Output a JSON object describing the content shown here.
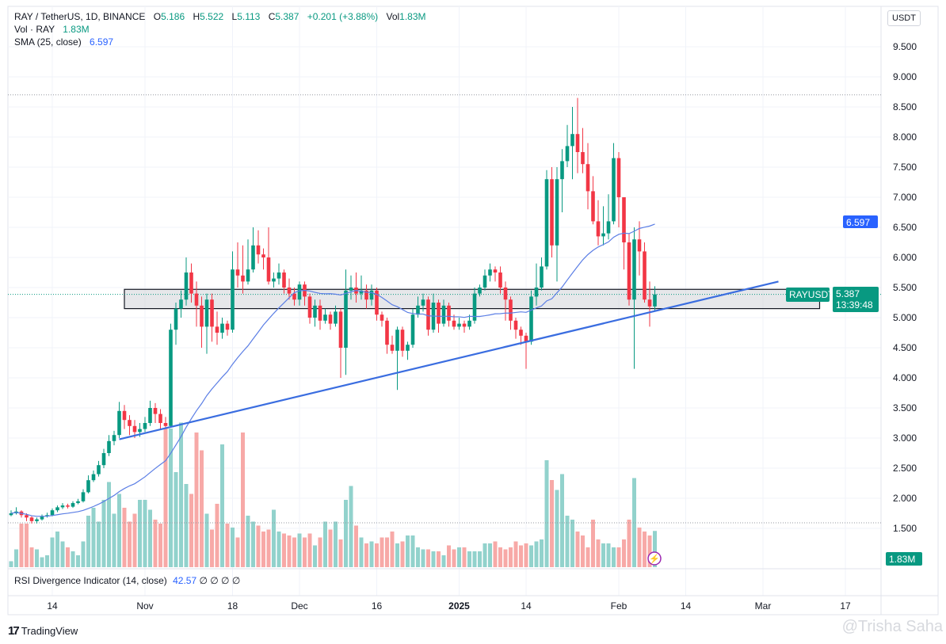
{
  "header": {
    "symbol": "RAY / TetherUS, 1D, BINANCE",
    "o_label": "O",
    "o": "5.186",
    "h_label": "H",
    "h": "5.522",
    "l_label": "L",
    "l": "5.113",
    "c_label": "C",
    "c": "5.387",
    "change": "+0.201 (+3.88%)",
    "vol_label": "Vol",
    "vol": "1.83M",
    "vol_indicator": "Vol · RAY",
    "vol_indicator_value": "1.83M",
    "sma_label": "SMA (25, close)",
    "sma_value": "6.597"
  },
  "rsi": {
    "label": "RSI Divergence Indicator (14, close)",
    "value": "42.57",
    "extras": "∅ ∅ ∅ ∅"
  },
  "currency": "USDT",
  "badges": {
    "sma": "6.597",
    "symbol": "RAYUSDT",
    "price": "5.387",
    "countdown": "13:39:48",
    "volume": "1.83M"
  },
  "branding": {
    "logo": "TradingView",
    "watermark": "@Trisha Saha"
  },
  "colors": {
    "up": "#089981",
    "down": "#f23645",
    "vol_up": "#92d2cc",
    "vol_down": "#f7a9a7",
    "sma": "#5b7ee5",
    "trendline": "#3a6de0",
    "badge_blue": "#2962ff"
  },
  "chart_data": {
    "type": "candlestick",
    "interval": "1D",
    "date_range": [
      "2024-10-06",
      "2025-02-08"
    ],
    "y_ticks": [
      "1.500",
      "2.000",
      "2.500",
      "3.000",
      "3.500",
      "4.000",
      "4.500",
      "5.000",
      "5.500",
      "6.000",
      "6.500",
      "7.000",
      "7.500",
      "8.000",
      "8.500",
      "9.000",
      "9.500"
    ],
    "ylim": [
      1.0,
      9.8
    ],
    "x_ticks": [
      {
        "label": "14",
        "date": "2024-10-14"
      },
      {
        "label": "Nov",
        "date": "2024-11-01"
      },
      {
        "label": "18",
        "date": "2024-11-18"
      },
      {
        "label": "Dec",
        "date": "2024-12-01"
      },
      {
        "label": "16",
        "date": "2024-12-16"
      },
      {
        "label": "2025",
        "date": "2025-01-01"
      },
      {
        "label": "14",
        "date": "2025-01-14"
      },
      {
        "label": "Feb",
        "date": "2025-02-01"
      },
      {
        "label": "14",
        "date": "2025-02-14"
      },
      {
        "label": "Mar",
        "date": "2025-03-01"
      },
      {
        "label": "17",
        "date": "2025-03-17"
      }
    ],
    "close": [
      1.75,
      1.78,
      1.72,
      1.68,
      1.62,
      1.65,
      1.7,
      1.72,
      1.8,
      1.85,
      1.88,
      1.86,
      1.92,
      1.95,
      2.1,
      2.3,
      2.4,
      2.55,
      2.75,
      2.95,
      3.05,
      3.45,
      3.3,
      3.2,
      3.1,
      3.15,
      3.25,
      3.5,
      3.4,
      3.25,
      3.2,
      4.8,
      5.15,
      5.3,
      5.75,
      5.4,
      5.2,
      4.85,
      5.3,
      4.85,
      4.75,
      4.9,
      4.8,
      5.8,
      5.7,
      5.6,
      5.8,
      6.2,
      6.05,
      6.0,
      5.6,
      5.65,
      5.75,
      5.5,
      5.4,
      5.3,
      5.55,
      5.35,
      5.0,
      5.2,
      4.95,
      5.05,
      4.9,
      5.1,
      4.5,
      5.45,
      5.5,
      5.4,
      5.45,
      5.3,
      5.45,
      5.05,
      4.95,
      4.55,
      4.45,
      4.8,
      4.45,
      4.55,
      5.05,
      5.2,
      5.3,
      4.8,
      5.25,
      4.9,
      5.2,
      4.95,
      4.85,
      4.9,
      4.85,
      4.95,
      5.4,
      5.5,
      5.7,
      5.8,
      5.75,
      5.5,
      5.3,
      4.95,
      4.8,
      4.7,
      4.6,
      5.35,
      5.5,
      5.85,
      7.3,
      6.2,
      7.3,
      7.6,
      7.85,
      8.05,
      7.75,
      7.55,
      7.1,
      6.6,
      6.35,
      6.4,
      6.6,
      7.65,
      7.0,
      6.25,
      5.3,
      6.3,
      6.1,
      5.3,
      5.186,
      5.387
    ],
    "high": [
      1.8,
      1.85,
      1.8,
      1.75,
      1.7,
      1.68,
      1.73,
      1.76,
      1.83,
      1.88,
      1.92,
      1.91,
      1.95,
      1.99,
      2.15,
      2.38,
      2.46,
      2.62,
      2.82,
      3.05,
      3.12,
      3.6,
      3.55,
      3.38,
      3.3,
      3.25,
      3.35,
      3.62,
      3.58,
      3.48,
      3.35,
      4.9,
      5.25,
      5.45,
      6.0,
      5.9,
      5.6,
      5.35,
      5.4,
      5.4,
      5.1,
      5.0,
      4.95,
      6.1,
      6.25,
      6.2,
      6.3,
      6.5,
      6.45,
      6.15,
      6.5,
      5.75,
      5.9,
      5.8,
      5.65,
      5.5,
      5.6,
      5.6,
      5.4,
      5.3,
      5.3,
      5.15,
      5.1,
      5.2,
      5.15,
      5.8,
      5.7,
      5.75,
      5.7,
      5.55,
      5.55,
      5.5,
      5.1,
      5.0,
      4.7,
      4.85,
      4.85,
      4.6,
      5.15,
      5.35,
      5.4,
      5.35,
      5.4,
      5.3,
      5.3,
      5.25,
      5.05,
      5.0,
      4.95,
      5.05,
      5.5,
      5.55,
      5.8,
      5.9,
      5.85,
      5.85,
      5.6,
      5.35,
      5.0,
      4.85,
      4.75,
      5.45,
      5.9,
      6.0,
      7.45,
      7.5,
      7.5,
      7.8,
      8.2,
      8.5,
      8.65,
      8.15,
      7.9,
      7.35,
      6.95,
      6.85,
      7.05,
      7.9,
      7.75,
      7.0,
      6.4,
      6.5,
      6.6,
      6.25,
      5.6,
      5.522
    ],
    "low": [
      1.7,
      1.73,
      1.68,
      1.62,
      1.58,
      1.58,
      1.63,
      1.68,
      1.7,
      1.77,
      1.82,
      1.83,
      1.84,
      1.9,
      1.93,
      2.08,
      2.27,
      2.36,
      2.5,
      2.7,
      2.88,
      3.0,
      3.15,
      3.05,
      3.0,
      3.02,
      3.1,
      3.2,
      3.25,
      3.15,
      3.15,
      3.18,
      4.55,
      5.0,
      5.2,
      5.25,
      4.85,
      4.5,
      4.4,
      4.6,
      4.55,
      4.65,
      4.7,
      4.75,
      5.5,
      5.4,
      5.55,
      5.75,
      5.9,
      5.8,
      5.55,
      5.5,
      5.55,
      5.4,
      5.3,
      5.2,
      5.2,
      5.2,
      4.9,
      4.85,
      4.8,
      4.9,
      4.8,
      4.85,
      4.0,
      4.05,
      5.3,
      5.25,
      5.3,
      5.15,
      5.2,
      4.95,
      4.85,
      4.4,
      4.4,
      3.8,
      4.35,
      4.3,
      4.5,
      5.0,
      5.1,
      4.7,
      4.75,
      4.75,
      4.85,
      4.85,
      4.8,
      4.8,
      4.75,
      4.8,
      4.9,
      5.35,
      5.45,
      5.6,
      5.6,
      5.4,
      4.95,
      4.8,
      4.65,
      4.55,
      4.15,
      4.55,
      5.2,
      5.45,
      5.8,
      6.0,
      5.6,
      6.75,
      7.5,
      7.3,
      7.4,
      7.4,
      6.8,
      6.55,
      6.2,
      6.2,
      6.3,
      6.55,
      6.5,
      5.8,
      5.2,
      4.15,
      5.7,
      5.25,
      4.85,
      5.113
    ],
    "volume_millions": [
      0.3,
      0.9,
      2.2,
      2.2,
      1.0,
      0.9,
      0.5,
      0.6,
      1.5,
      1.8,
      1.3,
      1.0,
      0.8,
      0.6,
      1.3,
      2.6,
      3.0,
      2.3,
      3.4,
      4.3,
      2.7,
      3.7,
      3.0,
      2.3,
      2.7,
      3.4,
      3.4,
      2.9,
      2.4,
      2.2,
      7.0,
      7.0,
      4.8,
      7.3,
      4.2,
      3.7,
      6.8,
      5.9,
      2.7,
      1.9,
      3.2,
      6.2,
      2.2,
      2.0,
      1.5,
      6.8,
      2.6,
      2.3,
      2.1,
      1.8,
      1.9,
      2.9,
      1.8,
      1.7,
      1.6,
      1.5,
      1.7,
      1.5,
      1.7,
      1.1,
      1.5,
      2.3,
      1.9,
      2.3,
      1.4,
      3.4,
      4.1,
      2.1,
      1.5,
      1.2,
      1.3,
      1.2,
      1.5,
      1.5,
      1.8,
      1.2,
      1.3,
      1.6,
      1.6,
      1.0,
      0.9,
      0.9,
      0.8,
      0.8,
      0.6,
      1.1,
      0.9,
      1.0,
      1.0,
      0.8,
      0.8,
      0.8,
      1.2,
      1.2,
      1.3,
      1.0,
      0.9,
      1.0,
      1.3,
      1.1,
      1.2,
      1.1,
      1.3,
      1.4,
      5.4,
      4.4,
      3.9,
      4.7,
      2.6,
      2.4,
      1.8,
      1.6,
      1.0,
      2.4,
      1.4,
      1.2,
      1.2,
      1.0,
      1.0,
      1.4,
      2.4,
      4.5,
      2.0,
      1.8,
      1.6,
      1.83
    ],
    "sma_period": 25,
    "trendline": {
      "from": {
        "date": "2024-10-27",
        "price": 2.98
      },
      "to": {
        "date": "2025-03-04",
        "price": 5.6
      }
    },
    "zone": {
      "from_date": "2024-10-28",
      "to_date": "2025-03-12",
      "low": 5.15,
      "high": 5.47
    },
    "dotted_levels": [
      8.7
    ]
  }
}
